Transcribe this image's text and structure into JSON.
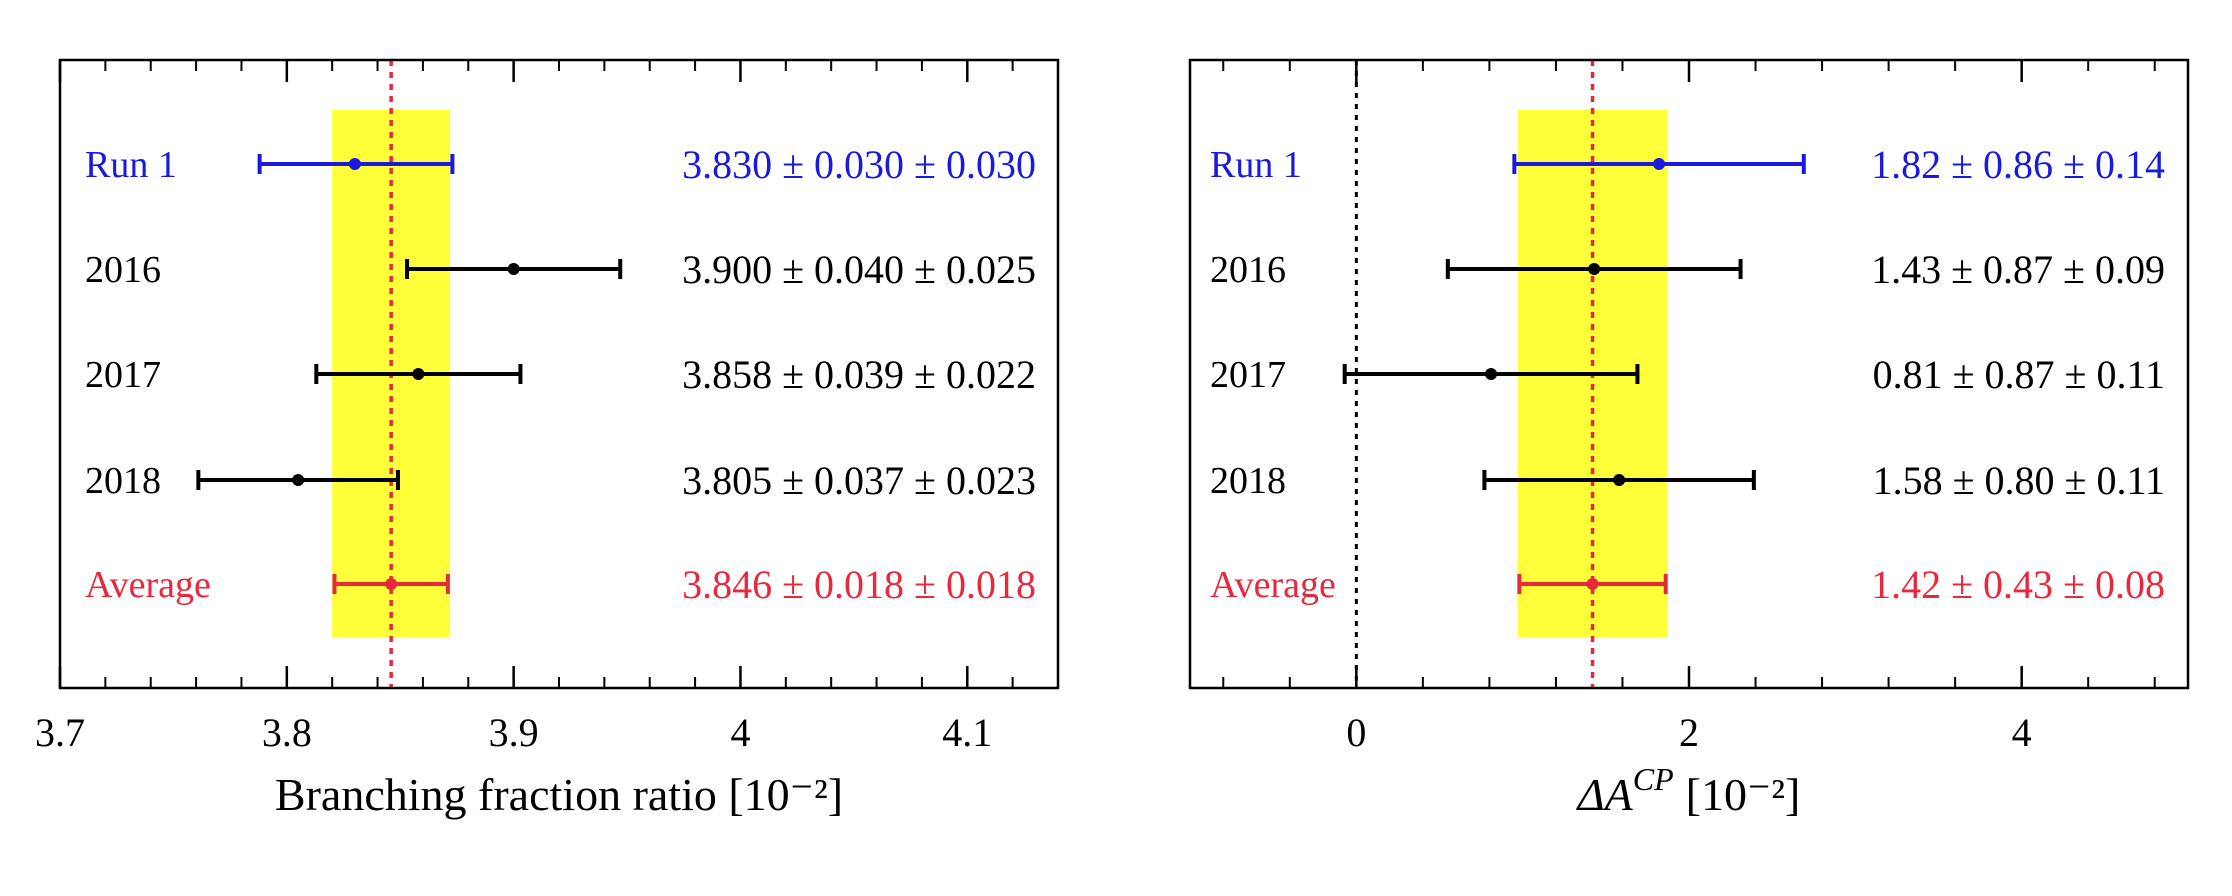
{
  "colors": {
    "run1": "#1a1adf",
    "year": "#000000",
    "average": "#e8283c",
    "band": "#ffff3a",
    "ref_line": "#e8283c",
    "zero_line": "#000000"
  },
  "chart_data": [
    {
      "type": "forest",
      "xlabel": "Branching fraction ratio [10⁻²]",
      "xlim": [
        3.7,
        4.14
      ],
      "xticks": [
        3.7,
        3.8,
        3.9,
        4.0,
        4.1
      ],
      "xtick_labels": [
        "3.7",
        "3.8",
        "3.9",
        "4",
        "4.1"
      ],
      "band": [
        3.82,
        3.872
      ],
      "ref_line": 3.846,
      "rows": [
        {
          "label": "Run 1",
          "color_key": "run1",
          "value": 3.83,
          "lo": 3.788,
          "hi": 3.873,
          "text": "3.830 ± 0.030 ± 0.030"
        },
        {
          "label": "2016",
          "color_key": "year",
          "value": 3.9,
          "lo": 3.853,
          "hi": 3.947,
          "text": "3.900 ± 0.040 ± 0.025"
        },
        {
          "label": "2017",
          "color_key": "year",
          "value": 3.858,
          "lo": 3.813,
          "hi": 3.903,
          "text": "3.858 ± 0.039 ± 0.022"
        },
        {
          "label": "2018",
          "color_key": "year",
          "value": 3.805,
          "lo": 3.761,
          "hi": 3.849,
          "text": "3.805 ± 0.037 ± 0.023"
        },
        {
          "label": "Average",
          "color_key": "average",
          "value": 3.846,
          "lo": 3.821,
          "hi": 3.871,
          "text": "3.846 ± 0.018 ± 0.018"
        }
      ]
    },
    {
      "type": "forest",
      "xlabel_main": "ΔA",
      "xlabel_sup": "CP",
      "xlabel_unit": "[10⁻²]",
      "xlim": [
        -1.0,
        5.0
      ],
      "xticks": [
        0,
        2,
        4
      ],
      "xtick_labels": [
        "0",
        "2",
        "4"
      ],
      "band": [
        0.97,
        1.87
      ],
      "ref_line": 1.42,
      "zero_line": 0,
      "rows": [
        {
          "label": "Run 1",
          "color_key": "run1",
          "value": 1.82,
          "lo": 0.95,
          "hi": 2.69,
          "text": "1.82 ± 0.86 ± 0.14"
        },
        {
          "label": "2016",
          "color_key": "year",
          "value": 1.43,
          "lo": 0.55,
          "hi": 2.31,
          "text": "1.43 ± 0.87 ± 0.09"
        },
        {
          "label": "2017",
          "color_key": "year",
          "value": 0.81,
          "lo": -0.07,
          "hi": 1.69,
          "text": "0.81 ± 0.87 ± 0.11"
        },
        {
          "label": "2018",
          "color_key": "year",
          "value": 1.58,
          "lo": 0.77,
          "hi": 2.39,
          "text": "1.58 ± 0.80 ± 0.11"
        },
        {
          "label": "Average",
          "color_key": "average",
          "value": 1.42,
          "lo": 0.98,
          "hi": 1.86,
          "text": "1.42 ± 0.43 ± 0.08"
        }
      ]
    }
  ]
}
